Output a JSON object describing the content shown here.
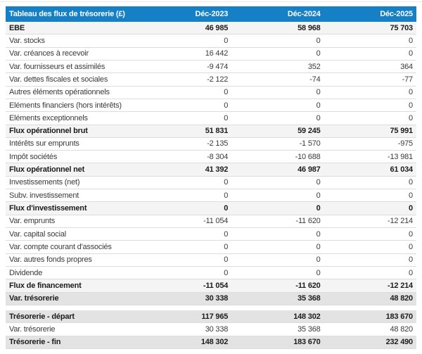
{
  "table": {
    "title": "Tableau des flux de trésorerie (£)",
    "columns": [
      "Déc-2023",
      "Déc-2024",
      "Déc-2025"
    ],
    "colors": {
      "header_bg": "#1580c6",
      "subtotal_bg": "#f4f4f4",
      "total_bg": "#e3e3e3",
      "row_border": "#dcdcdc"
    },
    "rows": [
      {
        "label": "EBE",
        "values": [
          "46 985",
          "58 968",
          "75 703"
        ],
        "style": "subtotal"
      },
      {
        "label": "Var. stocks",
        "values": [
          "0",
          "0",
          "0"
        ],
        "style": "normal"
      },
      {
        "label": "Var. créances à recevoir",
        "values": [
          "16 442",
          "0",
          "0"
        ],
        "style": "normal"
      },
      {
        "label": "Var. fournisseurs et assimilés",
        "values": [
          "-9 474",
          "352",
          "364"
        ],
        "style": "normal"
      },
      {
        "label": "Var. dettes fiscales et sociales",
        "values": [
          "-2 122",
          "-74",
          "-77"
        ],
        "style": "normal"
      },
      {
        "label": "Autres éléments opérationnels",
        "values": [
          "0",
          "0",
          "0"
        ],
        "style": "normal"
      },
      {
        "label": "Eléments financiers (hors intérêts)",
        "values": [
          "0",
          "0",
          "0"
        ],
        "style": "normal"
      },
      {
        "label": "Eléments exceptionnels",
        "values": [
          "0",
          "0",
          "0"
        ],
        "style": "normal"
      },
      {
        "label": "Flux opérationnel brut",
        "values": [
          "51 831",
          "59 245",
          "75 991"
        ],
        "style": "subtotal"
      },
      {
        "label": "Intérêts sur emprunts",
        "values": [
          "-2 135",
          "-1 570",
          "-975"
        ],
        "style": "normal"
      },
      {
        "label": "Impôt sociétés",
        "values": [
          "-8 304",
          "-10 688",
          "-13 981"
        ],
        "style": "normal"
      },
      {
        "label": "Flux opérationnel net",
        "values": [
          "41 392",
          "46 987",
          "61 034"
        ],
        "style": "subtotal"
      },
      {
        "label": "Investissements (net)",
        "values": [
          "0",
          "0",
          "0"
        ],
        "style": "normal"
      },
      {
        "label": "Subv. investissement",
        "values": [
          "0",
          "0",
          "0"
        ],
        "style": "normal"
      },
      {
        "label": "Flux d'investissement",
        "values": [
          "0",
          "0",
          "0"
        ],
        "style": "subtotal"
      },
      {
        "label": "Var. emprunts",
        "values": [
          "-11 054",
          "-11 620",
          "-12 214"
        ],
        "style": "normal"
      },
      {
        "label": "Var. capital social",
        "values": [
          "0",
          "0",
          "0"
        ],
        "style": "normal"
      },
      {
        "label": "Var. compte courant d'associés",
        "values": [
          "0",
          "0",
          "0"
        ],
        "style": "normal"
      },
      {
        "label": "Var. autres fonds propres",
        "values": [
          "0",
          "0",
          "0"
        ],
        "style": "normal"
      },
      {
        "label": "Dividende",
        "values": [
          "0",
          "0",
          "0"
        ],
        "style": "normal"
      },
      {
        "label": "Flux de financement",
        "values": [
          "-11 054",
          "-11 620",
          "-12 214"
        ],
        "style": "subtotal"
      },
      {
        "label": "Var. trésorerie",
        "values": [
          "30 338",
          "35 368",
          "48 820"
        ],
        "style": "total"
      }
    ],
    "summary_rows": [
      {
        "label": "Trésorerie - départ",
        "values": [
          "117 965",
          "148 302",
          "183 670"
        ],
        "style": "total"
      },
      {
        "label": "Var. trésorerie",
        "values": [
          "30 338",
          "35 368",
          "48 820"
        ],
        "style": "normal"
      },
      {
        "label": "Trésorerie - fin",
        "values": [
          "148 302",
          "183 670",
          "232 490"
        ],
        "style": "total"
      }
    ]
  }
}
